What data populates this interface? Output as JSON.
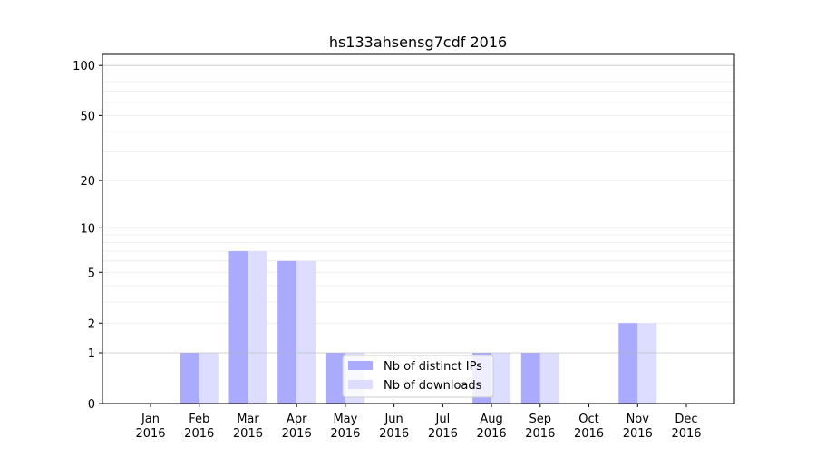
{
  "chart_data": {
    "type": "bar",
    "title": "hs133ahsensg7cdf 2016",
    "xlabel": "",
    "ylabel": "",
    "yscale": "log(1+y)",
    "ylim": [
      0,
      117
    ],
    "yticks": [
      0,
      1,
      2,
      5,
      10,
      20,
      50,
      100
    ],
    "grid": true,
    "legend_position": "lower-center",
    "categories": [
      "Jan\n2016",
      "Feb\n2016",
      "Mar\n2016",
      "Apr\n2016",
      "May\n2016",
      "Jun\n2016",
      "Jul\n2016",
      "Aug\n2016",
      "Sep\n2016",
      "Oct\n2016",
      "Nov\n2016",
      "Dec\n2016"
    ],
    "series": [
      {
        "name": "Nb of distinct IPs",
        "color": "#aaaaff",
        "values": [
          0,
          1,
          7,
          6,
          1,
          0,
          0,
          1,
          1,
          0,
          2,
          0
        ]
      },
      {
        "name": "Nb of downloads",
        "color": "#ddddff",
        "values": [
          0,
          1,
          7,
          6,
          1,
          0,
          0,
          1,
          1,
          0,
          2,
          0
        ]
      }
    ]
  }
}
